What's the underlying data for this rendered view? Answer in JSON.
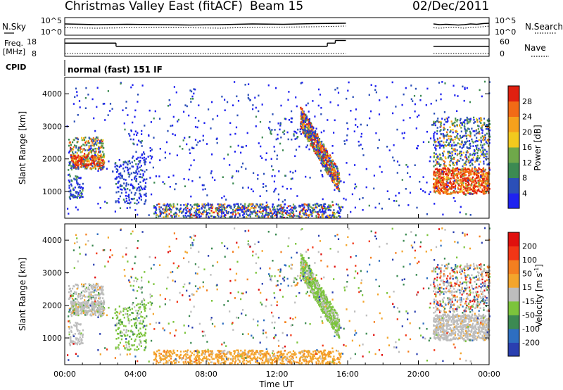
{
  "header": {
    "station": "Christmas Valley East (fitACF)",
    "beam": "Beam 15",
    "date": "02/Dec/2011"
  },
  "chart_data": [
    {
      "panel": "noise-and-search",
      "type": "line",
      "left_label": "N.Sky",
      "right_label": "N.Search",
      "left_ticks": [
        "10^5",
        "10^0"
      ],
      "right_ticks": [
        "10^5",
        "10^0"
      ],
      "segments_hours": [
        [
          0,
          15.9
        ],
        [
          20.85,
          24
        ]
      ],
      "series": [
        {
          "name": "N.Sky",
          "values": [
            3.2,
            3.0,
            3.1,
            3.0,
            2.9,
            3.0,
            3.2,
            3.1,
            3.3,
            3.4
          ],
          "style": "solid"
        },
        {
          "name": "N.Search",
          "values": [
            2.1,
            2.0,
            2.1,
            2.2,
            2.1,
            2.0,
            2.2,
            2.3,
            2.4,
            2.6
          ],
          "style": "dotted"
        }
      ]
    },
    {
      "panel": "frequency-and-nave",
      "type": "line",
      "left_label": "Freq.",
      "left_unit": "[MHz]",
      "right_label": "Nave",
      "left_ticks": [
        "18",
        "8"
      ],
      "right_ticks": [
        "60",
        "0"
      ],
      "freq_steps": [
        [
          0,
          2.9,
          15.5
        ],
        [
          2.9,
          14.85,
          13.7
        ],
        [
          14.85,
          15.3,
          15.5
        ],
        [
          15.3,
          15.9,
          17.0
        ],
        [
          20.85,
          24,
          13.7
        ]
      ],
      "nave_level": 10
    },
    {
      "panel": "cpid",
      "type": "table",
      "label": "CPID",
      "text": "normal (fast) 151 IF"
    },
    {
      "panel": "power",
      "type": "heatmap",
      "ylabel": "Slant Range [km]",
      "ylim": [
        180,
        4500
      ],
      "yticks": [
        1000,
        2000,
        3000,
        4000
      ],
      "xlim": [
        0,
        24
      ],
      "colorbar_label": "Power [dB]",
      "colorbar_ticks": [
        4,
        8,
        12,
        16,
        20,
        24,
        28
      ],
      "colorbar_colors": [
        "#1f22f0",
        "#2b4fb8",
        "#3c8a52",
        "#6fa84a",
        "#f2c91e",
        "#f6a11c",
        "#f26a16",
        "#e02010"
      ]
    },
    {
      "panel": "velocity",
      "type": "heatmap",
      "ylabel": "Slant Range [km]",
      "xlabel": "Time UT",
      "ylim": [
        180,
        4500
      ],
      "yticks": [
        1000,
        2000,
        3000,
        4000
      ],
      "xlim": [
        0,
        24
      ],
      "xticks": [
        "00:00",
        "04:00",
        "08:00",
        "12:00",
        "16:00",
        "20:00",
        "00:00"
      ],
      "colorbar_label": "Velocity [m s",
      "colorbar_label_sup": "-1",
      "colorbar_label_end": "]",
      "colorbar_ticks": [
        200,
        100,
        50,
        15,
        -15,
        -50,
        -100,
        -200
      ],
      "colorbar_colors": [
        "#2a3fb0",
        "#2e6ec0",
        "#3c8a52",
        "#7cc43c",
        "#bdbdbd",
        "#f3a52c",
        "#f47f20",
        "#f23616",
        "#e0100e"
      ]
    }
  ]
}
